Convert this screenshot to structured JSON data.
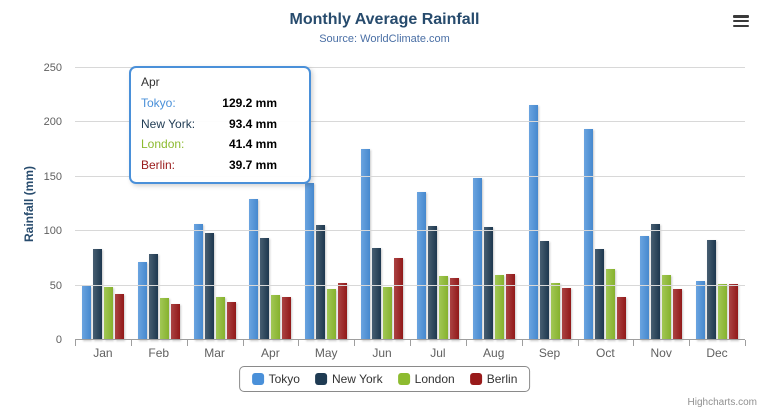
{
  "header": {
    "title": "Monthly Average Rainfall",
    "subtitle": "Source: WorldClimate.com"
  },
  "credits": "Highcharts.com",
  "chart_data": {
    "type": "bar",
    "title": "Monthly Average Rainfall",
    "subtitle": "Source: WorldClimate.com",
    "xlabel": "",
    "ylabel": "Rainfall (mm)",
    "ylim": [
      0,
      250
    ],
    "yticks": [
      0,
      50,
      100,
      150,
      200,
      250
    ],
    "grid": true,
    "legend_position": "bottom-center",
    "categories": [
      "Jan",
      "Feb",
      "Mar",
      "Apr",
      "May",
      "Jun",
      "Jul",
      "Aug",
      "Sep",
      "Oct",
      "Nov",
      "Dec"
    ],
    "series": [
      {
        "name": "Tokyo",
        "color": "#4a90d9",
        "values": [
          49.9,
          71.5,
          106.4,
          129.2,
          144.0,
          176.0,
          135.6,
          148.5,
          216.4,
          194.1,
          95.6,
          54.4
        ]
      },
      {
        "name": "New York",
        "color": "#1f3b53",
        "values": [
          83.6,
          78.8,
          98.5,
          93.4,
          106.0,
          84.5,
          105.0,
          104.3,
          91.2,
          83.5,
          106.6,
          92.3
        ]
      },
      {
        "name": "London",
        "color": "#8dbb30",
        "values": [
          48.9,
          38.8,
          39.3,
          41.4,
          47.0,
          48.3,
          59.0,
          59.6,
          52.4,
          65.2,
          59.3,
          51.2
        ]
      },
      {
        "name": "Berlin",
        "color": "#991a1a",
        "values": [
          42.4,
          33.2,
          34.5,
          39.7,
          52.6,
          75.5,
          57.4,
          60.4,
          47.6,
          39.1,
          46.8,
          51.1
        ]
      }
    ],
    "tooltip": {
      "category": "Apr",
      "rows": [
        {
          "name": "Tokyo",
          "value": "129.2 mm"
        },
        {
          "name": "New York",
          "value": "93.4 mm"
        },
        {
          "name": "London",
          "value": "41.4 mm"
        },
        {
          "name": "Berlin",
          "value": "39.7 mm"
        }
      ]
    }
  }
}
